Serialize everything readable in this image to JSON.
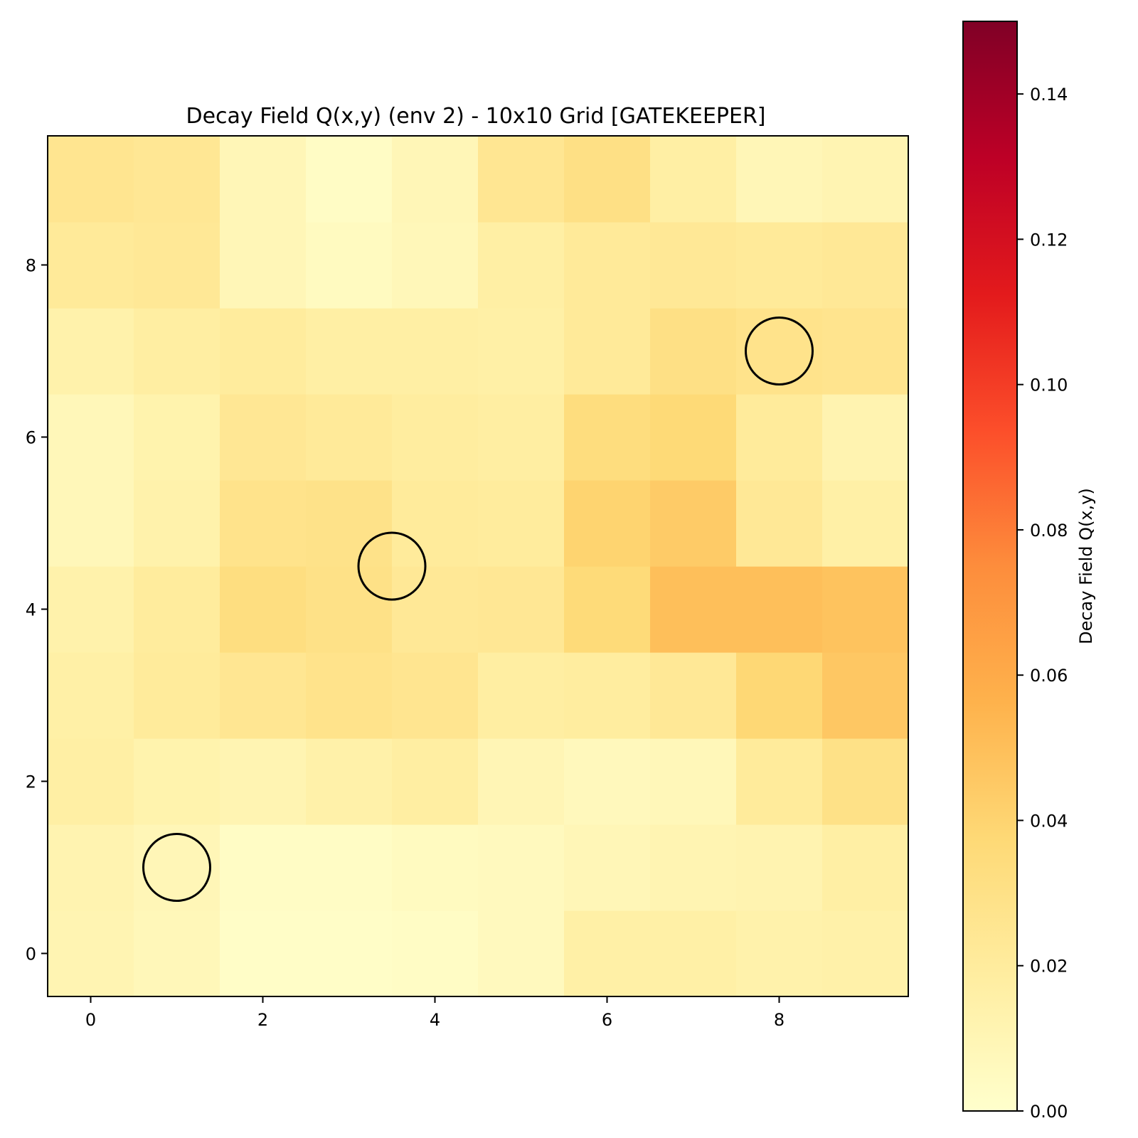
{
  "chart_data": {
    "type": "heatmap",
    "title": "Decay Field Q(x,y) (env 2) - 10x10 Grid [GATEKEEPER]",
    "xlabel": "",
    "ylabel": "",
    "colormap": "YlOrRd",
    "colormap_stops": [
      "#ffffcc",
      "#ffeda0",
      "#fed976",
      "#feb24c",
      "#fd8d3c",
      "#fc4e2a",
      "#e31a1c",
      "#bd0026",
      "#800026"
    ],
    "x": [
      0,
      1,
      2,
      3,
      4,
      5,
      6,
      7,
      8,
      9
    ],
    "y": [
      0,
      1,
      2,
      3,
      4,
      5,
      6,
      7,
      8,
      9
    ],
    "xlim": [
      -0.5,
      9.5
    ],
    "ylim": [
      -0.5,
      9.5
    ],
    "x_ticks": [
      0,
      2,
      4,
      6,
      8
    ],
    "y_ticks": [
      0,
      2,
      4,
      6,
      8
    ],
    "z": [
      [
        0.011,
        0.008,
        0.002,
        0.002,
        0.003,
        0.006,
        0.016,
        0.016,
        0.014,
        0.015
      ],
      [
        0.012,
        0.009,
        0.003,
        0.003,
        0.005,
        0.006,
        0.009,
        0.011,
        0.012,
        0.017
      ],
      [
        0.017,
        0.013,
        0.011,
        0.015,
        0.018,
        0.01,
        0.007,
        0.008,
        0.021,
        0.03
      ],
      [
        0.016,
        0.021,
        0.025,
        0.028,
        0.026,
        0.018,
        0.019,
        0.023,
        0.038,
        0.046
      ],
      [
        0.014,
        0.02,
        0.033,
        0.03,
        0.023,
        0.024,
        0.036,
        0.05,
        0.05,
        0.048
      ],
      [
        0.008,
        0.014,
        0.028,
        0.029,
        0.021,
        0.02,
        0.04,
        0.044,
        0.023,
        0.016
      ],
      [
        0.008,
        0.013,
        0.024,
        0.022,
        0.019,
        0.018,
        0.034,
        0.037,
        0.021,
        0.012
      ],
      [
        0.014,
        0.018,
        0.02,
        0.017,
        0.017,
        0.016,
        0.022,
        0.031,
        0.028,
        0.027
      ],
      [
        0.022,
        0.023,
        0.009,
        0.005,
        0.008,
        0.017,
        0.022,
        0.023,
        0.022,
        0.023
      ],
      [
        0.026,
        0.024,
        0.009,
        0.003,
        0.009,
        0.025,
        0.031,
        0.017,
        0.009,
        0.011
      ]
    ],
    "markers": [
      {
        "x": 1,
        "y": 1
      },
      {
        "x": 3.5,
        "y": 4.5
      },
      {
        "x": 8,
        "y": 7
      }
    ],
    "colorbar": {
      "label": "Decay Field Q(x,y)",
      "vmin": 0.0,
      "vmax": 0.15,
      "ticks": [
        0.0,
        0.02,
        0.04,
        0.06,
        0.08,
        0.1,
        0.12,
        0.14
      ],
      "tick_labels": [
        "0.00",
        "0.02",
        "0.04",
        "0.06",
        "0.08",
        "0.10",
        "0.12",
        "0.14"
      ]
    }
  }
}
